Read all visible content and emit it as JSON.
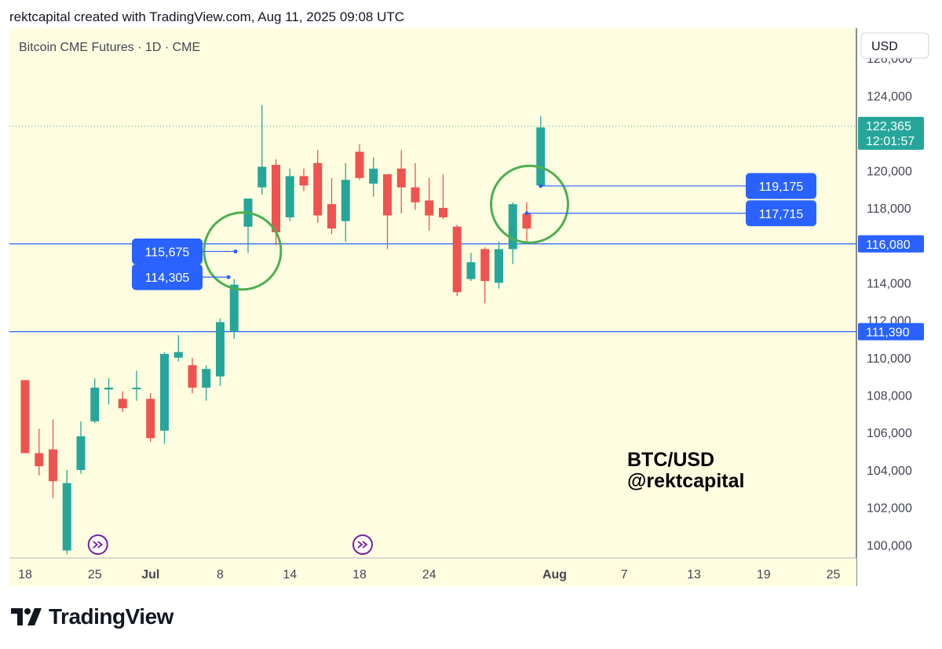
{
  "header": {
    "caption": "rektcapital created with TradingView.com, Aug 11, 2025 09:08 UTC"
  },
  "brand": {
    "name": "TradingView"
  },
  "colors": {
    "background": "#fffde0",
    "bull": "#26a69a",
    "bear": "#ef5350",
    "level_line": "#2962ff",
    "label_bg": "#2962ff",
    "circle": "#4caf50",
    "marker": "#7b1fa2"
  },
  "chart_data": {
    "type": "candlestick",
    "title": "Bitcoin CME Futures · 1D · CME",
    "currency": "USD",
    "ylim": [
      99300,
      127600
    ],
    "y_ticks": [
      100000,
      102000,
      104000,
      106000,
      108000,
      110000,
      112000,
      114000,
      116000,
      118000,
      120000,
      122000,
      124000,
      126000
    ],
    "x_ticks": [
      {
        "label": "18",
        "x": 0
      },
      {
        "label": "25",
        "x": 5
      },
      {
        "label": "Jul",
        "x": 9,
        "bold": true
      },
      {
        "label": "8",
        "x": 14
      },
      {
        "label": "14",
        "x": 19
      },
      {
        "label": "18",
        "x": 24
      },
      {
        "label": "24",
        "x": 29
      },
      {
        "label": "Aug",
        "x": 38,
        "bold": true
      },
      {
        "label": "7",
        "x": 43
      },
      {
        "label": "13",
        "x": 48
      },
      {
        "label": "19",
        "x": 53
      },
      {
        "label": "25",
        "x": 58
      }
    ],
    "candles": [
      {
        "x": 0,
        "o": 108800,
        "h": 108800,
        "l": 104900,
        "c": 104900
      },
      {
        "x": 1,
        "o": 104900,
        "h": 106200,
        "l": 103700,
        "c": 104200
      },
      {
        "x": 2,
        "o": 105100,
        "h": 106700,
        "l": 102500,
        "c": 103400
      },
      {
        "x": 3,
        "o": 99700,
        "h": 104000,
        "l": 99500,
        "c": 103300
      },
      {
        "x": 4,
        "o": 104000,
        "h": 106600,
        "l": 103800,
        "c": 105800
      },
      {
        "x": 5,
        "o": 106600,
        "h": 108900,
        "l": 106500,
        "c": 108400
      },
      {
        "x": 6,
        "o": 108300,
        "h": 108900,
        "l": 107500,
        "c": 108400
      },
      {
        "x": 7,
        "o": 107800,
        "h": 108200,
        "l": 107100,
        "c": 107300
      },
      {
        "x": 8,
        "o": 108400,
        "h": 109300,
        "l": 107700,
        "c": 108400
      },
      {
        "x": 9,
        "o": 107800,
        "h": 108100,
        "l": 105500,
        "c": 105700
      },
      {
        "x": 10,
        "o": 106100,
        "h": 110300,
        "l": 105400,
        "c": 110200
      },
      {
        "x": 11,
        "o": 110000,
        "h": 111200,
        "l": 109800,
        "c": 110300
      },
      {
        "x": 12,
        "o": 109600,
        "h": 110000,
        "l": 108100,
        "c": 108400
      },
      {
        "x": 13,
        "o": 108400,
        "h": 109600,
        "l": 107700,
        "c": 109400
      },
      {
        "x": 14,
        "o": 109000,
        "h": 112100,
        "l": 108500,
        "c": 111900
      },
      {
        "x": 15,
        "o": 111400,
        "h": 114200,
        "l": 111000,
        "c": 113900
      },
      {
        "x": 16,
        "o": 117000,
        "h": 118500,
        "l": 115600,
        "c": 118500
      },
      {
        "x": 17,
        "o": 119100,
        "h": 123500,
        "l": 118700,
        "c": 120200
      },
      {
        "x": 18,
        "o": 120300,
        "h": 120600,
        "l": 116000,
        "c": 116700
      },
      {
        "x": 19,
        "o": 117500,
        "h": 120100,
        "l": 117300,
        "c": 119700
      },
      {
        "x": 20,
        "o": 119700,
        "h": 120100,
        "l": 118900,
        "c": 119200
      },
      {
        "x": 21,
        "o": 120400,
        "h": 121100,
        "l": 117200,
        "c": 117600
      },
      {
        "x": 22,
        "o": 118200,
        "h": 119600,
        "l": 116600,
        "c": 116900
      },
      {
        "x": 23,
        "o": 117300,
        "h": 120400,
        "l": 116200,
        "c": 119500
      },
      {
        "x": 24,
        "o": 121000,
        "h": 121400,
        "l": 119500,
        "c": 119600
      },
      {
        "x": 25,
        "o": 119300,
        "h": 120700,
        "l": 118600,
        "c": 120100
      },
      {
        "x": 26,
        "o": 119800,
        "h": 119800,
        "l": 115800,
        "c": 117600
      },
      {
        "x": 27,
        "o": 120100,
        "h": 121100,
        "l": 117700,
        "c": 119100
      },
      {
        "x": 28,
        "o": 119100,
        "h": 120400,
        "l": 117900,
        "c": 118300
      },
      {
        "x": 29,
        "o": 118400,
        "h": 119600,
        "l": 116800,
        "c": 117600
      },
      {
        "x": 30,
        "o": 118000,
        "h": 119800,
        "l": 117400,
        "c": 117500
      },
      {
        "x": 31,
        "o": 117000,
        "h": 117100,
        "l": 113300,
        "c": 113500
      },
      {
        "x": 32,
        "o": 114200,
        "h": 115600,
        "l": 114100,
        "c": 115100
      },
      {
        "x": 33,
        "o": 115800,
        "h": 115900,
        "l": 112900,
        "c": 114100
      },
      {
        "x": 34,
        "o": 114000,
        "h": 116200,
        "l": 113700,
        "c": 115800
      },
      {
        "x": 35,
        "o": 115800,
        "h": 118300,
        "l": 115000,
        "c": 118200
      },
      {
        "x": 36,
        "o": 117700,
        "h": 118300,
        "l": 116200,
        "c": 116900
      },
      {
        "x": 37,
        "o": 119200,
        "h": 122900,
        "l": 119100,
        "c": 122300
      }
    ],
    "horizontal_levels": [
      {
        "value": 116080,
        "label": "116,080"
      },
      {
        "value": 111390,
        "label": "111,390"
      }
    ],
    "last_price": {
      "value": 122365,
      "label": "122,365",
      "countdown": "12:01:57"
    },
    "callouts": [
      {
        "label": "115,675",
        "value": 115675,
        "target_x": 15.1,
        "side": "left"
      },
      {
        "label": "114,305",
        "value": 114305,
        "target_x": 14.6,
        "side": "left"
      },
      {
        "label": "119,175",
        "value": 119175,
        "target_x": 37,
        "side": "right"
      },
      {
        "label": "117,715",
        "value": 117715,
        "target_x": 36,
        "side": "right"
      }
    ],
    "circles": [
      {
        "x": 15.6,
        "value": 115700
      },
      {
        "x": 36.2,
        "value": 118200
      }
    ],
    "markers": [
      {
        "x": 5
      },
      {
        "x": 24
      }
    ],
    "annotation": {
      "line1": "BTC/USD",
      "line2": "@rektcapital"
    }
  }
}
